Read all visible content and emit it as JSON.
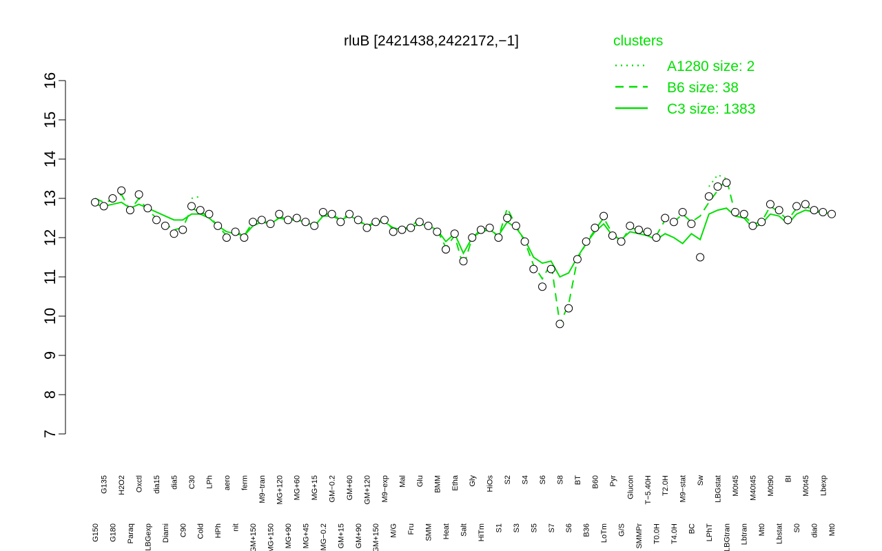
{
  "chart_data": {
    "type": "line",
    "title": "rluB [2421438,2422172,−1]",
    "legend_title": "clusters",
    "legend_position": "top-right",
    "categories": [
      "G150",
      "G135",
      "G180",
      "H2O2",
      "Paraq",
      "Oxctl",
      "LBGexp",
      "dia15",
      "Diami",
      "dia5",
      "C90",
      "C30",
      "Cold",
      "LPh",
      "HPh",
      "aero",
      "nit",
      "ferm",
      "GM+150",
      "M9−tran",
      "MG+150",
      "MG+120",
      "MG+90",
      "MG+60",
      "MG+45",
      "MG+15",
      "MG−0.2",
      "GM−0.2",
      "GM+15",
      "GM+60",
      "GM+90",
      "GM+120",
      "GM+150",
      "M9−exp",
      "M/G",
      "Mal",
      "Fru",
      "Glu",
      "SMM",
      "BMM",
      "Heat",
      "Etha",
      "Salt",
      "Gly",
      "HiTm",
      "HiOs",
      "S1",
      "S2",
      "S3",
      "S4",
      "S5",
      "S6",
      "S7",
      "S8",
      "S6",
      "BT",
      "B36",
      "B60",
      "LoTm",
      "Pyr",
      "G/S",
      "Glucon",
      "SMMPr",
      "T−5.40H",
      "T0.0H",
      "T2.0H",
      "T4.0H",
      "M9−stat",
      "BC",
      "Sw",
      "LPhT",
      "LBGstat",
      "LBGtran",
      "M0t45",
      "Lbtran",
      "M40t45",
      "Mt0",
      "M0t90",
      "Lbstat",
      "BI",
      "S0",
      "M0t45",
      "dia0",
      "Lbexp",
      "Mt0"
    ],
    "values": [
      12.9,
      12.8,
      13.0,
      13.2,
      12.7,
      13.1,
      12.75,
      12.45,
      12.3,
      12.1,
      12.2,
      12.8,
      12.7,
      12.6,
      12.3,
      12.0,
      12.15,
      12.0,
      12.4,
      12.45,
      12.35,
      12.6,
      12.45,
      12.5,
      12.4,
      12.3,
      12.65,
      12.6,
      12.4,
      12.6,
      12.45,
      12.25,
      12.4,
      12.45,
      12.15,
      12.2,
      12.25,
      12.4,
      12.3,
      12.15,
      11.7,
      12.1,
      11.4,
      12.0,
      12.2,
      12.25,
      12.0,
      12.5,
      12.3,
      11.9,
      11.2,
      10.75,
      11.2,
      9.8,
      10.2,
      11.45,
      11.9,
      12.25,
      12.55,
      12.05,
      11.9,
      12.3,
      12.2,
      12.15,
      12.0,
      12.5,
      12.4,
      12.65,
      12.35,
      11.5,
      13.05,
      13.3,
      13.4,
      12.65,
      12.6,
      12.3,
      12.4,
      12.85,
      12.7,
      12.45,
      12.8,
      12.85,
      12.7,
      12.65,
      12.6
    ],
    "series": [
      {
        "name": "A1280 size: 2",
        "color": "#00e000",
        "linestyle": "dotted",
        "values": [
          null,
          null,
          null,
          null,
          null,
          null,
          null,
          null,
          null,
          null,
          null,
          13.0,
          13.05,
          null,
          null,
          null,
          null,
          null,
          null,
          null,
          null,
          null,
          null,
          null,
          null,
          null,
          null,
          null,
          null,
          null,
          null,
          null,
          null,
          null,
          null,
          null,
          null,
          null,
          null,
          null,
          null,
          null,
          null,
          null,
          null,
          null,
          null,
          null,
          null,
          null,
          null,
          null,
          null,
          null,
          null,
          null,
          null,
          null,
          null,
          null,
          null,
          null,
          null,
          null,
          null,
          null,
          null,
          null,
          null,
          null,
          13.3,
          13.6,
          13.5,
          null,
          null,
          null,
          null,
          null,
          null,
          null,
          null,
          null,
          null,
          null,
          null
        ]
      },
      {
        "name": "B6 size: 38",
        "color": "#00e000",
        "linestyle": "dashed",
        "values": [
          13.0,
          12.9,
          12.95,
          13.1,
          12.7,
          13.0,
          12.7,
          12.5,
          12.35,
          12.2,
          12.25,
          12.75,
          12.65,
          12.55,
          12.3,
          12.05,
          12.15,
          12.05,
          12.4,
          12.45,
          12.35,
          12.55,
          12.45,
          12.5,
          12.4,
          12.25,
          12.6,
          12.6,
          12.45,
          12.6,
          12.45,
          12.25,
          12.4,
          12.45,
          12.2,
          12.2,
          12.3,
          12.45,
          12.3,
          12.2,
          11.75,
          12.05,
          11.25,
          12.0,
          12.2,
          12.25,
          12.0,
          12.75,
          12.3,
          11.9,
          11.3,
          10.95,
          11.35,
          9.8,
          10.3,
          11.45,
          11.85,
          12.2,
          12.5,
          12.1,
          11.9,
          12.25,
          12.2,
          12.1,
          12.05,
          12.45,
          12.4,
          12.6,
          12.4,
          12.55,
          12.9,
          13.2,
          13.5,
          12.6,
          12.55,
          12.35,
          12.4,
          12.8,
          12.65,
          12.45,
          12.75,
          12.8,
          12.7,
          12.65,
          12.6
        ]
      },
      {
        "name": "C3 size: 1383",
        "color": "#00e000",
        "linestyle": "solid",
        "values": [
          12.85,
          12.8,
          12.85,
          12.9,
          12.75,
          12.85,
          12.75,
          12.65,
          12.55,
          12.45,
          12.45,
          12.6,
          12.6,
          12.5,
          12.3,
          12.15,
          12.1,
          12.05,
          12.3,
          12.4,
          12.35,
          12.5,
          12.45,
          12.45,
          12.4,
          12.3,
          12.55,
          12.55,
          12.45,
          12.55,
          12.45,
          12.3,
          12.4,
          12.4,
          12.25,
          12.2,
          12.25,
          12.35,
          12.3,
          12.2,
          11.9,
          12.1,
          11.6,
          12.0,
          12.15,
          12.2,
          12.05,
          12.4,
          12.25,
          11.95,
          11.5,
          11.35,
          11.4,
          11.0,
          11.1,
          11.5,
          11.85,
          12.15,
          12.35,
          12.05,
          11.95,
          12.15,
          12.1,
          12.05,
          11.95,
          12.1,
          12.0,
          11.85,
          12.1,
          11.95,
          12.6,
          12.7,
          12.75,
          12.55,
          12.5,
          12.25,
          12.35,
          12.6,
          12.55,
          12.35,
          12.6,
          12.7,
          12.65,
          12.65,
          12.6
        ]
      }
    ],
    "point_fill": "#ffffff",
    "ylim": [
      7,
      16
    ],
    "yticks": [
      7,
      8,
      9,
      10,
      11,
      12,
      13,
      14,
      15,
      16
    ]
  }
}
